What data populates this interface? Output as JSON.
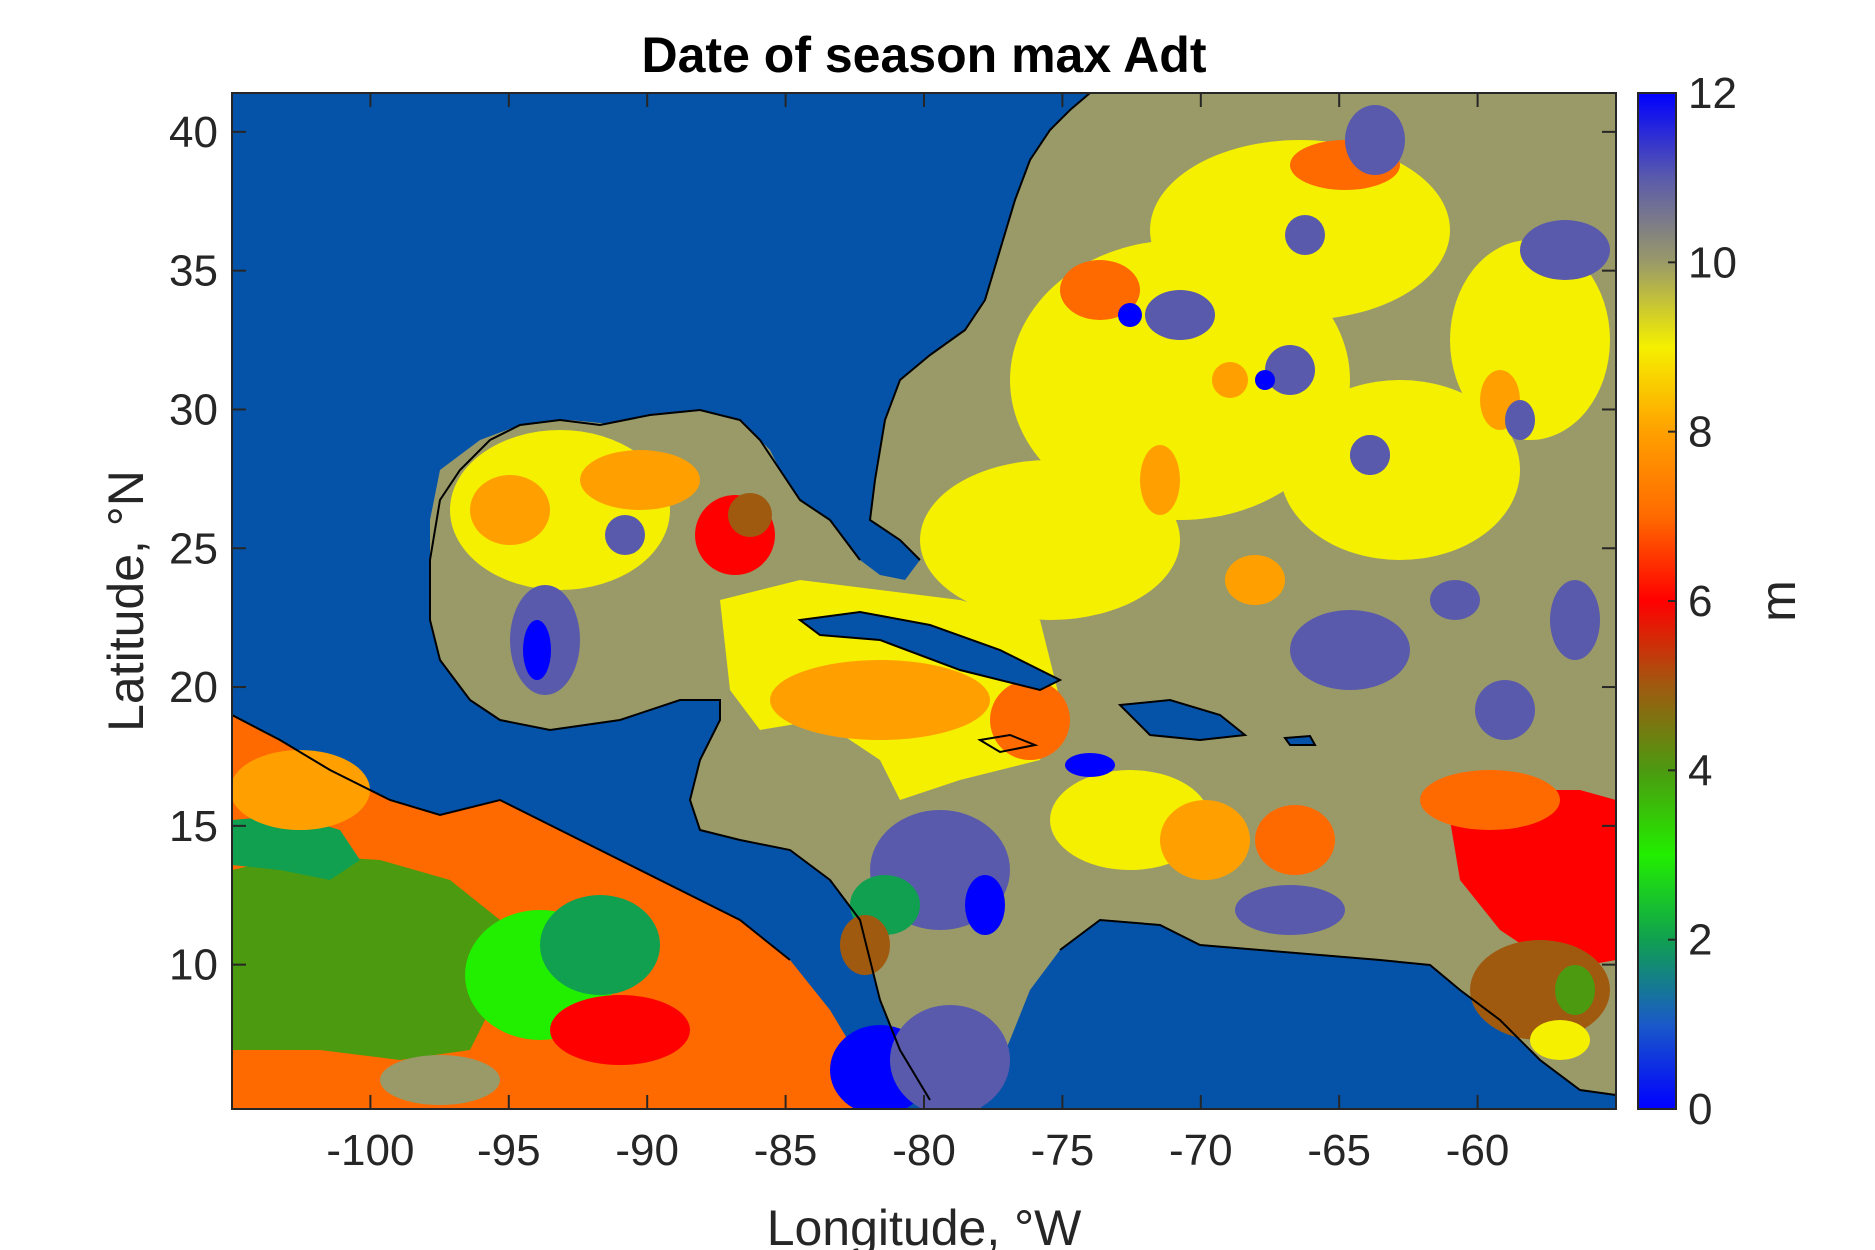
{
  "figure": {
    "title": "Date of season max Adt"
  },
  "map": {
    "xlabel": "Longitude, °W",
    "ylabel": "Latitude, °N",
    "xlim": [
      -105,
      -55
    ],
    "ylim": [
      4.8,
      41.4
    ],
    "xticks": [
      -100,
      -95,
      -90,
      -85,
      -80,
      -75,
      -70,
      -65,
      -60
    ],
    "xtick_labels": [
      "-100",
      "-95",
      "-90",
      "-85",
      "-80",
      "-75",
      "-70",
      "-65",
      "-60"
    ],
    "yticks": [
      10,
      15,
      20,
      25,
      30,
      35,
      40
    ],
    "ytick_labels": [
      "10",
      "15",
      "20",
      "25",
      "30",
      "35",
      "40"
    ],
    "land_color": "#0453a8",
    "coastline_color": "#000000"
  },
  "colorbar": {
    "label": "m",
    "range": [
      0,
      12
    ],
    "ticks": [
      0,
      2,
      4,
      6,
      8,
      10,
      12
    ],
    "tick_labels": [
      "0",
      "2",
      "4",
      "6",
      "8",
      "10",
      "12"
    ],
    "colors": [
      {
        "v": 0,
        "c": "#0000ff"
      },
      {
        "v": 1,
        "c": "#1a5ac8"
      },
      {
        "v": 2,
        "c": "#10a050"
      },
      {
        "v": 3,
        "c": "#22ee00"
      },
      {
        "v": 4,
        "c": "#4c9a10"
      },
      {
        "v": 5,
        "c": "#a05a10"
      },
      {
        "v": 6,
        "c": "#ff0000"
      },
      {
        "v": 7,
        "c": "#ff6a00"
      },
      {
        "v": 8,
        "c": "#ffa000"
      },
      {
        "v": 9,
        "c": "#f5f000"
      },
      {
        "v": 10,
        "c": "#9a9a68"
      },
      {
        "v": 11,
        "c": "#5a5aac"
      },
      {
        "v": 12,
        "c": "#0000ff"
      }
    ]
  }
}
